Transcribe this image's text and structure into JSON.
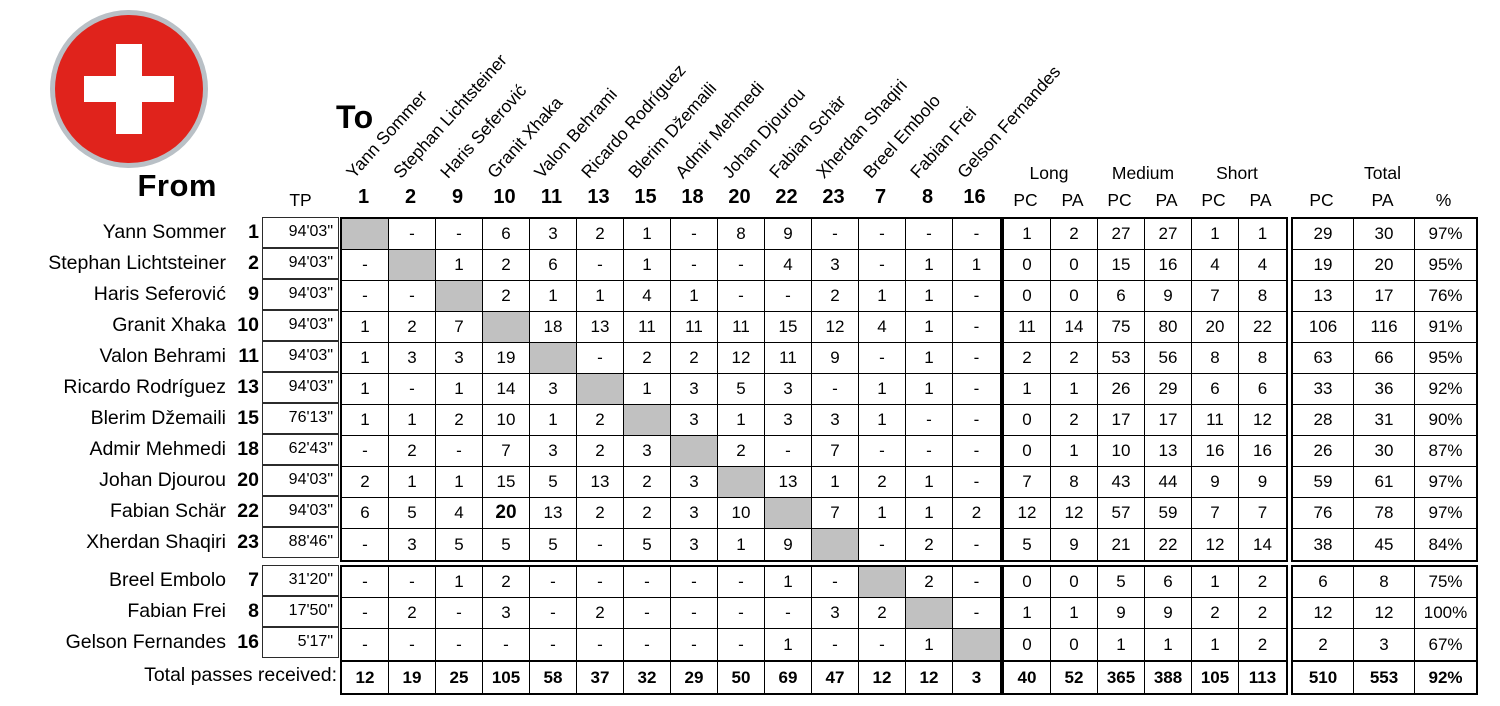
{
  "logo": {
    "name": "switzerland-flag",
    "circle_color": "#e0231c",
    "ring_color": "#b9c0c6",
    "cross_color": "#ffffff"
  },
  "header": {
    "to_label": "To",
    "from_label": "From",
    "tp_label": "TP",
    "pc_label": "PC",
    "pa_label": "PA",
    "pct_label": "%",
    "group_labels": [
      "Long",
      "Medium",
      "Short",
      "Total"
    ],
    "col_numbers": [
      "1",
      "2",
      "9",
      "10",
      "11",
      "13",
      "15",
      "18",
      "20",
      "22",
      "23",
      "7",
      "8",
      "16"
    ],
    "col_names": [
      "Yann Sommer",
      "Stephan Lichtsteiner",
      "Haris Seferović",
      "Granit Xhaka",
      "Valon Behrami",
      "Ricardo Rodríguez",
      "Blerim Džemaili",
      "Admir Mehmedi",
      "Johan Djourou",
      "Fabian Schär",
      "Xherdan Shaqiri",
      "Breel Embolo",
      "Fabian Frei",
      "Gelson Fernandes"
    ]
  },
  "players": [
    {
      "name": "Yann Sommer",
      "number": "1",
      "tp": "94'03\"",
      "starter": true,
      "passes": [
        "",
        "-",
        "-",
        "6",
        "3",
        "2",
        "1",
        "-",
        "8",
        "9",
        "-",
        "-",
        "-",
        "-"
      ],
      "breakdown": [
        "1",
        "2",
        "27",
        "27",
        "1",
        "1"
      ],
      "total": [
        "29",
        "30",
        "97%"
      ]
    },
    {
      "name": "Stephan Lichtsteiner",
      "number": "2",
      "tp": "94'03\"",
      "starter": true,
      "passes": [
        "-",
        "",
        "1",
        "2",
        "6",
        "-",
        "1",
        "-",
        "-",
        "4",
        "3",
        "-",
        "1",
        "1"
      ],
      "breakdown": [
        "0",
        "0",
        "15",
        "16",
        "4",
        "4"
      ],
      "total": [
        "19",
        "20",
        "95%"
      ]
    },
    {
      "name": "Haris Seferović",
      "number": "9",
      "tp": "94'03\"",
      "starter": true,
      "passes": [
        "-",
        "-",
        "",
        "2",
        "1",
        "1",
        "4",
        "1",
        "-",
        "-",
        "2",
        "1",
        "1",
        "-"
      ],
      "breakdown": [
        "0",
        "0",
        "6",
        "9",
        "7",
        "8"
      ],
      "total": [
        "13",
        "17",
        "76%"
      ]
    },
    {
      "name": "Granit Xhaka",
      "number": "10",
      "tp": "94'03\"",
      "starter": true,
      "passes": [
        "1",
        "2",
        "7",
        "",
        "18",
        "13",
        "11",
        "11",
        "11",
        "15",
        "12",
        "4",
        "1",
        "-"
      ],
      "breakdown": [
        "11",
        "14",
        "75",
        "80",
        "20",
        "22"
      ],
      "total": [
        "106",
        "116",
        "91%"
      ]
    },
    {
      "name": "Valon Behrami",
      "number": "11",
      "tp": "94'03\"",
      "starter": true,
      "passes": [
        "1",
        "3",
        "3",
        "19",
        "",
        "-",
        "2",
        "2",
        "12",
        "11",
        "9",
        "-",
        "1",
        "-"
      ],
      "breakdown": [
        "2",
        "2",
        "53",
        "56",
        "8",
        "8"
      ],
      "total": [
        "63",
        "66",
        "95%"
      ]
    },
    {
      "name": "Ricardo Rodríguez",
      "number": "13",
      "tp": "94'03\"",
      "starter": true,
      "passes": [
        "1",
        "-",
        "1",
        "14",
        "3",
        "",
        "1",
        "3",
        "5",
        "3",
        "-",
        "1",
        "1",
        "-"
      ],
      "breakdown": [
        "1",
        "1",
        "26",
        "29",
        "6",
        "6"
      ],
      "total": [
        "33",
        "36",
        "92%"
      ]
    },
    {
      "name": "Blerim Džemaili",
      "number": "15",
      "tp": "76'13\"",
      "starter": true,
      "passes": [
        "1",
        "1",
        "2",
        "10",
        "1",
        "2",
        "",
        "3",
        "1",
        "3",
        "3",
        "1",
        "-",
        "-"
      ],
      "breakdown": [
        "0",
        "2",
        "17",
        "17",
        "11",
        "12"
      ],
      "total": [
        "28",
        "31",
        "90%"
      ]
    },
    {
      "name": "Admir Mehmedi",
      "number": "18",
      "tp": "62'43\"",
      "starter": true,
      "passes": [
        "-",
        "2",
        "-",
        "7",
        "3",
        "2",
        "3",
        "",
        "2",
        "-",
        "7",
        "-",
        "-",
        "-"
      ],
      "breakdown": [
        "0",
        "1",
        "10",
        "13",
        "16",
        "16"
      ],
      "total": [
        "26",
        "30",
        "87%"
      ]
    },
    {
      "name": "Johan Djourou",
      "number": "20",
      "tp": "94'03\"",
      "starter": true,
      "passes": [
        "2",
        "1",
        "1",
        "15",
        "5",
        "13",
        "2",
        "3",
        "",
        "13",
        "1",
        "2",
        "1",
        "-"
      ],
      "breakdown": [
        "7",
        "8",
        "43",
        "44",
        "9",
        "9"
      ],
      "total": [
        "59",
        "61",
        "97%"
      ]
    },
    {
      "name": "Fabian Schär",
      "number": "22",
      "tp": "94'03\"",
      "starter": true,
      "passes": [
        "6",
        "5",
        "4",
        "20",
        "13",
        "2",
        "2",
        "3",
        "10",
        "",
        "7",
        "1",
        "1",
        "2"
      ],
      "breakdown": [
        "12",
        "12",
        "57",
        "59",
        "7",
        "7"
      ],
      "total": [
        "76",
        "78",
        "97%"
      ]
    },
    {
      "name": "Xherdan Shaqiri",
      "number": "23",
      "tp": "88'46\"",
      "starter": true,
      "passes": [
        "-",
        "3",
        "5",
        "5",
        "5",
        "-",
        "5",
        "3",
        "1",
        "9",
        "",
        "-",
        "2",
        "-"
      ],
      "breakdown": [
        "5",
        "9",
        "21",
        "22",
        "12",
        "14"
      ],
      "total": [
        "38",
        "45",
        "84%"
      ]
    },
    {
      "name": "Breel Embolo",
      "number": "7",
      "tp": "31'20\"",
      "starter": false,
      "passes": [
        "-",
        "-",
        "1",
        "2",
        "-",
        "-",
        "-",
        "-",
        "-",
        "1",
        "-",
        "",
        "2",
        "-"
      ],
      "breakdown": [
        "0",
        "0",
        "5",
        "6",
        "1",
        "2"
      ],
      "total": [
        "6",
        "8",
        "75%"
      ]
    },
    {
      "name": "Fabian Frei",
      "number": "8",
      "tp": "17'50\"",
      "starter": false,
      "passes": [
        "-",
        "2",
        "-",
        "3",
        "-",
        "2",
        "-",
        "-",
        "-",
        "-",
        "3",
        "2",
        "",
        "-"
      ],
      "breakdown": [
        "1",
        "1",
        "9",
        "9",
        "2",
        "2"
      ],
      "total": [
        "12",
        "12",
        "100%"
      ]
    },
    {
      "name": "Gelson Fernandes",
      "number": "16",
      "tp": "5'17\"",
      "starter": false,
      "passes": [
        "-",
        "-",
        "-",
        "-",
        "-",
        "-",
        "-",
        "-",
        "-",
        "1",
        "-",
        "-",
        "1",
        ""
      ],
      "breakdown": [
        "0",
        "0",
        "1",
        "1",
        "1",
        "2"
      ],
      "total": [
        "2",
        "3",
        "67%"
      ]
    }
  ],
  "highlight": {
    "row": 9,
    "col": 3,
    "value": "20"
  },
  "totals": {
    "label": "Total passes received:",
    "received": [
      "12",
      "19",
      "25",
      "105",
      "58",
      "37",
      "32",
      "29",
      "50",
      "69",
      "47",
      "12",
      "12",
      "3"
    ],
    "breakdown": [
      "40",
      "52",
      "365",
      "388",
      "105",
      "113"
    ],
    "total": [
      "510",
      "553",
      "92%"
    ]
  },
  "colors": {
    "diagonal": "#c1c1c1"
  }
}
